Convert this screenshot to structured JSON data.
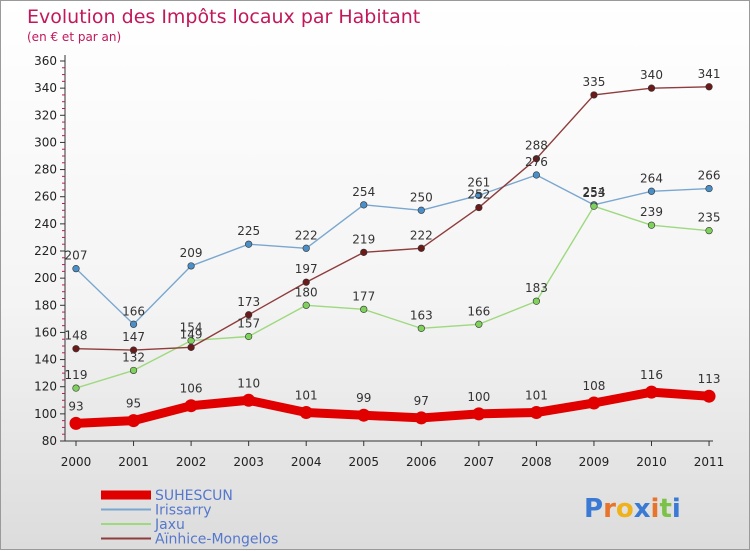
{
  "chart_data": {
    "type": "line",
    "title": "Evolution des Impôts locaux par Habitant",
    "subtitle": "(en € et par an)",
    "x": [
      "2000",
      "2001",
      "2002",
      "2003",
      "2004",
      "2005",
      "2006",
      "2007",
      "2008",
      "2009",
      "2010",
      "2011"
    ],
    "ylim": [
      80,
      360
    ],
    "yticks": [
      80,
      100,
      120,
      140,
      160,
      180,
      200,
      220,
      240,
      260,
      280,
      300,
      320,
      340,
      360
    ],
    "grid": false,
    "legend_position": "bottom-left",
    "series": [
      {
        "name": "Irissarry",
        "color": "#4a8fc8",
        "line_color": "#7aa7cf",
        "values": [
          207,
          166,
          209,
          225,
          222,
          254,
          250,
          261,
          276,
          254,
          264,
          266
        ]
      },
      {
        "name": "Jaxu",
        "color": "#7ed15a",
        "line_color": "#9ed97e",
        "values": [
          119,
          132,
          154,
          157,
          180,
          177,
          163,
          166,
          183,
          253,
          239,
          235
        ]
      },
      {
        "name": "Aïnhice-Mongelos",
        "color": "#6b1a1a",
        "line_color": "#8e3c3c",
        "values": [
          148,
          147,
          149,
          173,
          197,
          219,
          222,
          252,
          288,
          335,
          340,
          341
        ]
      },
      {
        "name": "SUHESCUN",
        "color": "#e00000",
        "line_color": "#e00000",
        "values": [
          93,
          95,
          106,
          110,
          101,
          99,
          97,
          100,
          101,
          108,
          116,
          113
        ]
      }
    ],
    "label_colors": {
      "SUHESCUN": "#5577cc",
      "Irissarry": "#5577cc",
      "Jaxu": "#5577cc",
      "Aïnhice-Mongelos": "#5577cc"
    }
  },
  "legend": [
    {
      "name": "SUHESCUN",
      "color": "#e00000"
    },
    {
      "name": "Irissarry",
      "color": "#7aa7cf"
    },
    {
      "name": "Jaxu",
      "color": "#9ed97e"
    },
    {
      "name": "Aïnhice-Mongelos",
      "color": "#8e3c3c"
    }
  ],
  "logo": {
    "text": "Proxiti",
    "letter_colors": [
      "#3a7ad4",
      "#e8732a",
      "#f0b21a",
      "#3a7ad4",
      "#e8732a",
      "#7cc24a",
      "#3a7ad4"
    ]
  }
}
